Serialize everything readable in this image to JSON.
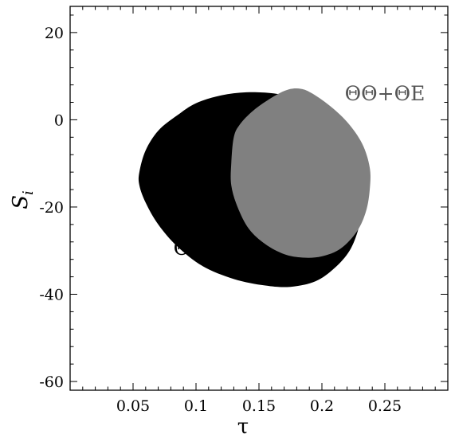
{
  "chart_data": {
    "type": "area",
    "title": "",
    "xlabel": "τ",
    "ylabel_main": "S",
    "ylabel_sub": "i",
    "xlim": [
      0.0,
      0.3
    ],
    "ylim": [
      -62,
      26
    ],
    "xticks": [
      {
        "value": 0.05,
        "label": "0.05"
      },
      {
        "value": 0.1,
        "label": "0.1"
      },
      {
        "value": 0.15,
        "label": "0.15"
      },
      {
        "value": 0.2,
        "label": "0.2"
      },
      {
        "value": 0.25,
        "label": "0.25"
      }
    ],
    "yticks": [
      {
        "value": 20,
        "label": "20"
      },
      {
        "value": 0,
        "label": "0"
      },
      {
        "value": -20,
        "label": "-20"
      },
      {
        "value": -40,
        "label": "-40"
      },
      {
        "value": -60,
        "label": "-60"
      }
    ],
    "grid": false,
    "series": [
      {
        "name": "ΘΘ",
        "color": "#000000",
        "label_at": [
          0.095,
          -31
        ],
        "outline": [
          [
            0.055,
            -12
          ],
          [
            0.06,
            -7
          ],
          [
            0.07,
            -2.5
          ],
          [
            0.085,
            1
          ],
          [
            0.1,
            3.8
          ],
          [
            0.12,
            5.6
          ],
          [
            0.14,
            6.3
          ],
          [
            0.16,
            6.1
          ],
          [
            0.175,
            5.2
          ],
          [
            0.19,
            3.2
          ],
          [
            0.205,
            0
          ],
          [
            0.215,
            -4
          ],
          [
            0.225,
            -10
          ],
          [
            0.23,
            -15
          ],
          [
            0.232,
            -20
          ],
          [
            0.229,
            -25
          ],
          [
            0.222,
            -30
          ],
          [
            0.21,
            -34
          ],
          [
            0.195,
            -37
          ],
          [
            0.175,
            -38.3
          ],
          [
            0.155,
            -38
          ],
          [
            0.13,
            -36.5
          ],
          [
            0.105,
            -33.5
          ],
          [
            0.085,
            -29
          ],
          [
            0.07,
            -24
          ],
          [
            0.06,
            -19
          ],
          [
            0.055,
            -15
          ]
        ]
      },
      {
        "name": "ΘΘ+ΘE",
        "color": "#808080",
        "label_at": [
          0.25,
          4.5
        ],
        "outline": [
          [
            0.128,
            -10
          ],
          [
            0.13,
            -4
          ],
          [
            0.135,
            -1
          ],
          [
            0.145,
            2
          ],
          [
            0.157,
            4.5
          ],
          [
            0.17,
            6.6
          ],
          [
            0.18,
            7.2
          ],
          [
            0.19,
            6.4
          ],
          [
            0.205,
            3.5
          ],
          [
            0.22,
            -0.5
          ],
          [
            0.232,
            -5.5
          ],
          [
            0.238,
            -11
          ],
          [
            0.238,
            -16
          ],
          [
            0.235,
            -21
          ],
          [
            0.228,
            -25.5
          ],
          [
            0.215,
            -29.5
          ],
          [
            0.2,
            -31.3
          ],
          [
            0.185,
            -31.6
          ],
          [
            0.17,
            -30.8
          ],
          [
            0.155,
            -28.5
          ],
          [
            0.142,
            -25
          ],
          [
            0.133,
            -20
          ],
          [
            0.128,
            -15
          ]
        ]
      }
    ]
  }
}
